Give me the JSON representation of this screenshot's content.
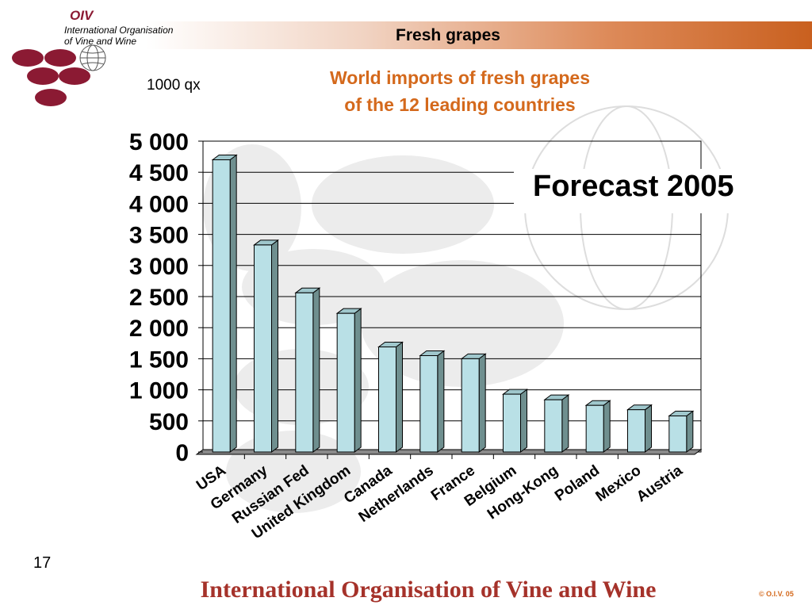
{
  "header": {
    "title": "Fresh grapes",
    "org_abbrev": "OIV",
    "org_name_line1": "International Organisation",
    "org_name_line2": "of  Vine  and  Wine"
  },
  "unit_label": "1000 qx",
  "annotation": "Forecast 2005",
  "footer": {
    "page_number": "17",
    "org_full_name": "International Organisation of Vine and Wine",
    "copyright": "© O.I.V. 05"
  },
  "colors": {
    "title_orange": "#d4691c",
    "footer_red": "#a5322a",
    "bar_fill": "#b9e0e6",
    "bar_side": "#6f8f8f",
    "logo_burgundy": "#8b1a33"
  },
  "chart_data": {
    "type": "bar",
    "title_line1": "World imports of fresh grapes",
    "title_line2": "of the 12 leading countries",
    "categories": [
      "USA",
      "Germany",
      "Russian Fed",
      "United Kingdom",
      "Canada",
      "Netherlands",
      "France",
      "Belgium",
      "Hong-Kong",
      "Poland",
      "Mexico",
      "Austria"
    ],
    "values": [
      4700,
      3330,
      2560,
      2230,
      1690,
      1550,
      1500,
      930,
      840,
      750,
      680,
      580
    ],
    "ylim": [
      0,
      5000
    ],
    "yticks": [
      0,
      500,
      1000,
      1500,
      2000,
      2500,
      3000,
      3500,
      4000,
      4500,
      5000
    ],
    "ytick_labels": [
      "0",
      "500",
      "1 000",
      "1 500",
      "2 000",
      "2 500",
      "3 000",
      "3 500",
      "4 000",
      "4 500",
      "5 000"
    ],
    "grid": true,
    "style": "3d"
  }
}
